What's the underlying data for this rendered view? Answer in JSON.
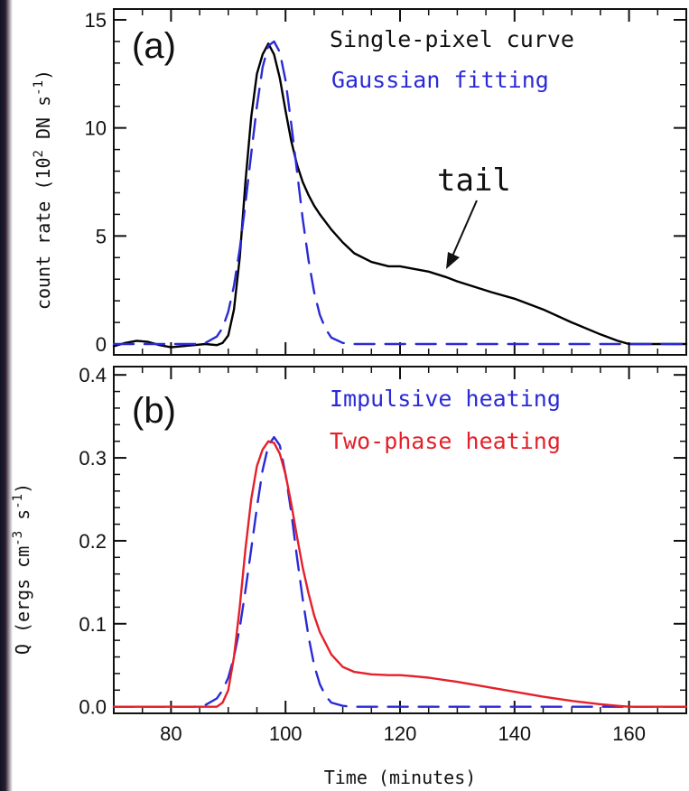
{
  "chart_data": [
    {
      "panel": "(a)",
      "type": "line",
      "ylabel_pre": "count rate (10",
      "ylabel_exp1": "2",
      "ylabel_mid": " DN s",
      "ylabel_exp2": "-1",
      "ylabel_post": ")",
      "xlim": [
        70,
        170
      ],
      "ylim": [
        -0.5,
        15.5
      ],
      "yticks": [
        0,
        5,
        10,
        15
      ],
      "ytick_labels": [
        "0",
        "5",
        "10",
        "15"
      ],
      "annotation": "tail",
      "series": [
        {
          "name": "Single-pixel curve",
          "color": "#000000",
          "style": "solid",
          "x": [
            70,
            72,
            74,
            76,
            78,
            80,
            84,
            86,
            88,
            89,
            90,
            91,
            92,
            93,
            94,
            95,
            96,
            97,
            98,
            99,
            100,
            101,
            102,
            103,
            104,
            105,
            106,
            108,
            110,
            112,
            115,
            118,
            120,
            122,
            125,
            128,
            130,
            133,
            136,
            140,
            145,
            150,
            155,
            158,
            160,
            165,
            170
          ],
          "y": [
            -0.1,
            0.05,
            0.15,
            0.1,
            -0.05,
            -0.15,
            -0.05,
            0.0,
            -0.05,
            0.05,
            0.4,
            1.6,
            4.0,
            7.5,
            10.5,
            12.5,
            13.4,
            13.9,
            13.4,
            12.3,
            10.8,
            9.4,
            8.3,
            7.5,
            6.9,
            6.4,
            6.0,
            5.3,
            4.7,
            4.2,
            3.8,
            3.6,
            3.6,
            3.5,
            3.35,
            3.1,
            2.9,
            2.65,
            2.4,
            2.1,
            1.6,
            1.0,
            0.45,
            0.15,
            0.0,
            0.0,
            0.0
          ]
        },
        {
          "name": "Gaussian fitting",
          "color": "#2a2ad6",
          "style": "dashed",
          "x": [
            70,
            84,
            86,
            88,
            89,
            90,
            91,
            92,
            93,
            94,
            95,
            96,
            97,
            98,
            99,
            100,
            101,
            102,
            103,
            104,
            105,
            106,
            107,
            108,
            110,
            112,
            170
          ],
          "y": [
            0.0,
            0.0,
            0.05,
            0.35,
            0.75,
            1.5,
            2.7,
            4.4,
            6.5,
            8.8,
            11.0,
            12.8,
            13.8,
            14.0,
            13.5,
            12.2,
            10.2,
            8.0,
            5.8,
            3.9,
            2.4,
            1.35,
            0.7,
            0.3,
            0.05,
            0.0,
            0.0
          ]
        }
      ]
    },
    {
      "panel": "(b)",
      "type": "line",
      "ylabel_pre": "Q (ergs cm",
      "ylabel_exp1": "-3",
      "ylabel_mid": " s",
      "ylabel_exp2": "-1",
      "ylabel_post": ")",
      "xlabel": "Time (minutes)",
      "xlim": [
        70,
        170
      ],
      "ylim": [
        -0.008,
        0.41
      ],
      "xticks": [
        80,
        100,
        120,
        140,
        160
      ],
      "xtick_labels": [
        "80",
        "100",
        "120",
        "140",
        "160"
      ],
      "yticks": [
        0.0,
        0.1,
        0.2,
        0.3,
        0.4
      ],
      "ytick_labels": [
        "0.0",
        "0.1",
        "0.2",
        "0.3",
        "0.4"
      ],
      "series": [
        {
          "name": "Impulsive heating",
          "color": "#2a2ad6",
          "style": "dashed",
          "x": [
            70,
            84,
            86,
            88,
            89,
            90,
            91,
            92,
            93,
            94,
            95,
            96,
            97,
            98,
            99,
            100,
            101,
            102,
            103,
            104,
            105,
            106,
            107,
            108,
            110,
            112,
            170
          ],
          "y": [
            0.0,
            0.0,
            0.002,
            0.01,
            0.02,
            0.035,
            0.06,
            0.095,
            0.14,
            0.19,
            0.24,
            0.285,
            0.315,
            0.325,
            0.315,
            0.28,
            0.235,
            0.18,
            0.13,
            0.085,
            0.05,
            0.027,
            0.013,
            0.005,
            0.001,
            0.0,
            0.0
          ]
        },
        {
          "name": "Two-phase heating",
          "color": "#e5202a",
          "style": "solid",
          "x": [
            70,
            88,
            89,
            90,
            91,
            92,
            93,
            94,
            95,
            96,
            97,
            98,
            99,
            100,
            101,
            102,
            103,
            104,
            105,
            106,
            108,
            110,
            112,
            115,
            118,
            120,
            122,
            125,
            128,
            130,
            135,
            140,
            145,
            150,
            155,
            158,
            160,
            170
          ],
          "y": [
            0.0,
            0.0,
            0.005,
            0.02,
            0.06,
            0.12,
            0.19,
            0.25,
            0.29,
            0.31,
            0.32,
            0.318,
            0.305,
            0.28,
            0.245,
            0.205,
            0.168,
            0.137,
            0.11,
            0.09,
            0.063,
            0.048,
            0.042,
            0.039,
            0.038,
            0.038,
            0.037,
            0.035,
            0.032,
            0.03,
            0.024,
            0.018,
            0.012,
            0.007,
            0.003,
            0.001,
            0.0,
            0.0
          ]
        }
      ]
    }
  ]
}
